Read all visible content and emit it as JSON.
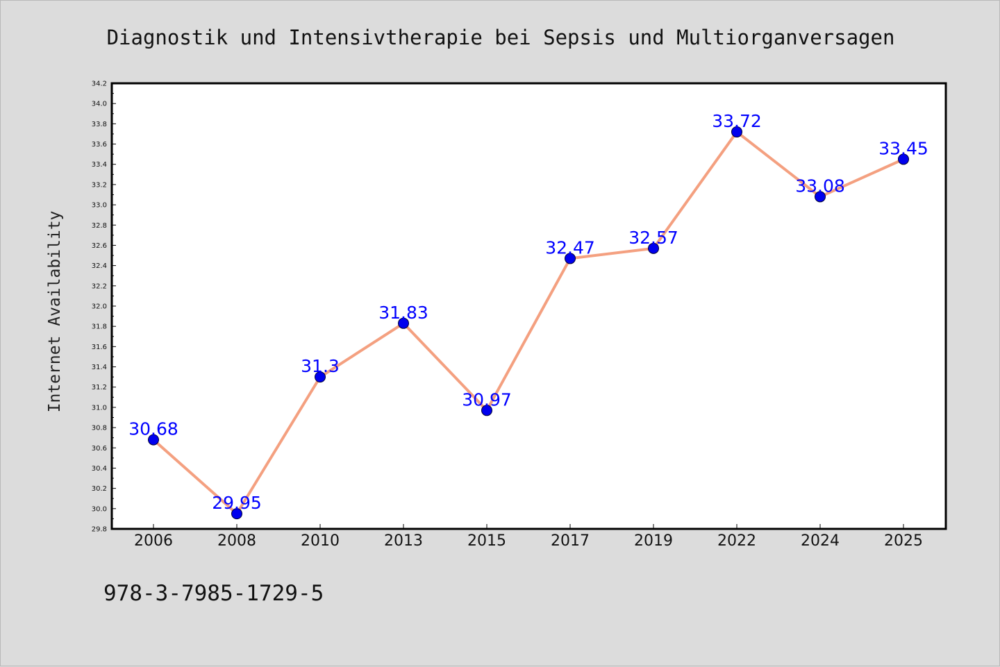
{
  "chart_data": {
    "type": "line",
    "title": "Diagnostik und Intensivtherapie bei Sepsis und Multiorganversagen",
    "xlabel": "",
    "ylabel": "Internet Availability",
    "categories": [
      "2006",
      "2008",
      "2010",
      "2013",
      "2015",
      "2017",
      "2019",
      "2022",
      "2024",
      "2025"
    ],
    "series": [
      {
        "values": [
          30.68,
          29.95,
          31.3,
          31.83,
          30.97,
          32.47,
          32.57,
          33.72,
          33.08,
          33.45
        ],
        "labels": [
          "30.68",
          "29.95",
          "31.3",
          "31.83",
          "30.97",
          "32.47",
          "32.57",
          "33.72",
          "33.08",
          "33.45"
        ],
        "line_color": "#f4a080",
        "marker_color": "#0000ee"
      }
    ],
    "ylim": [
      29.8,
      34.2
    ],
    "yticks": [
      "29.8",
      "30.0",
      "30.2",
      "30.4",
      "30.6",
      "30.8",
      "31.0",
      "31.2",
      "31.4",
      "31.6",
      "31.8",
      "32.0",
      "32.2",
      "32.4",
      "32.6",
      "32.8",
      "33.0",
      "33.2",
      "33.4",
      "33.6",
      "33.8",
      "34.0",
      "34.2"
    ],
    "grid": false,
    "legend": "none",
    "data_label_color": "#0000ff"
  },
  "footer": {
    "isbn": "978-3-7985-1729-5"
  },
  "colors": {
    "background": "#dcdcdc",
    "plot_area": "#ffffff"
  }
}
